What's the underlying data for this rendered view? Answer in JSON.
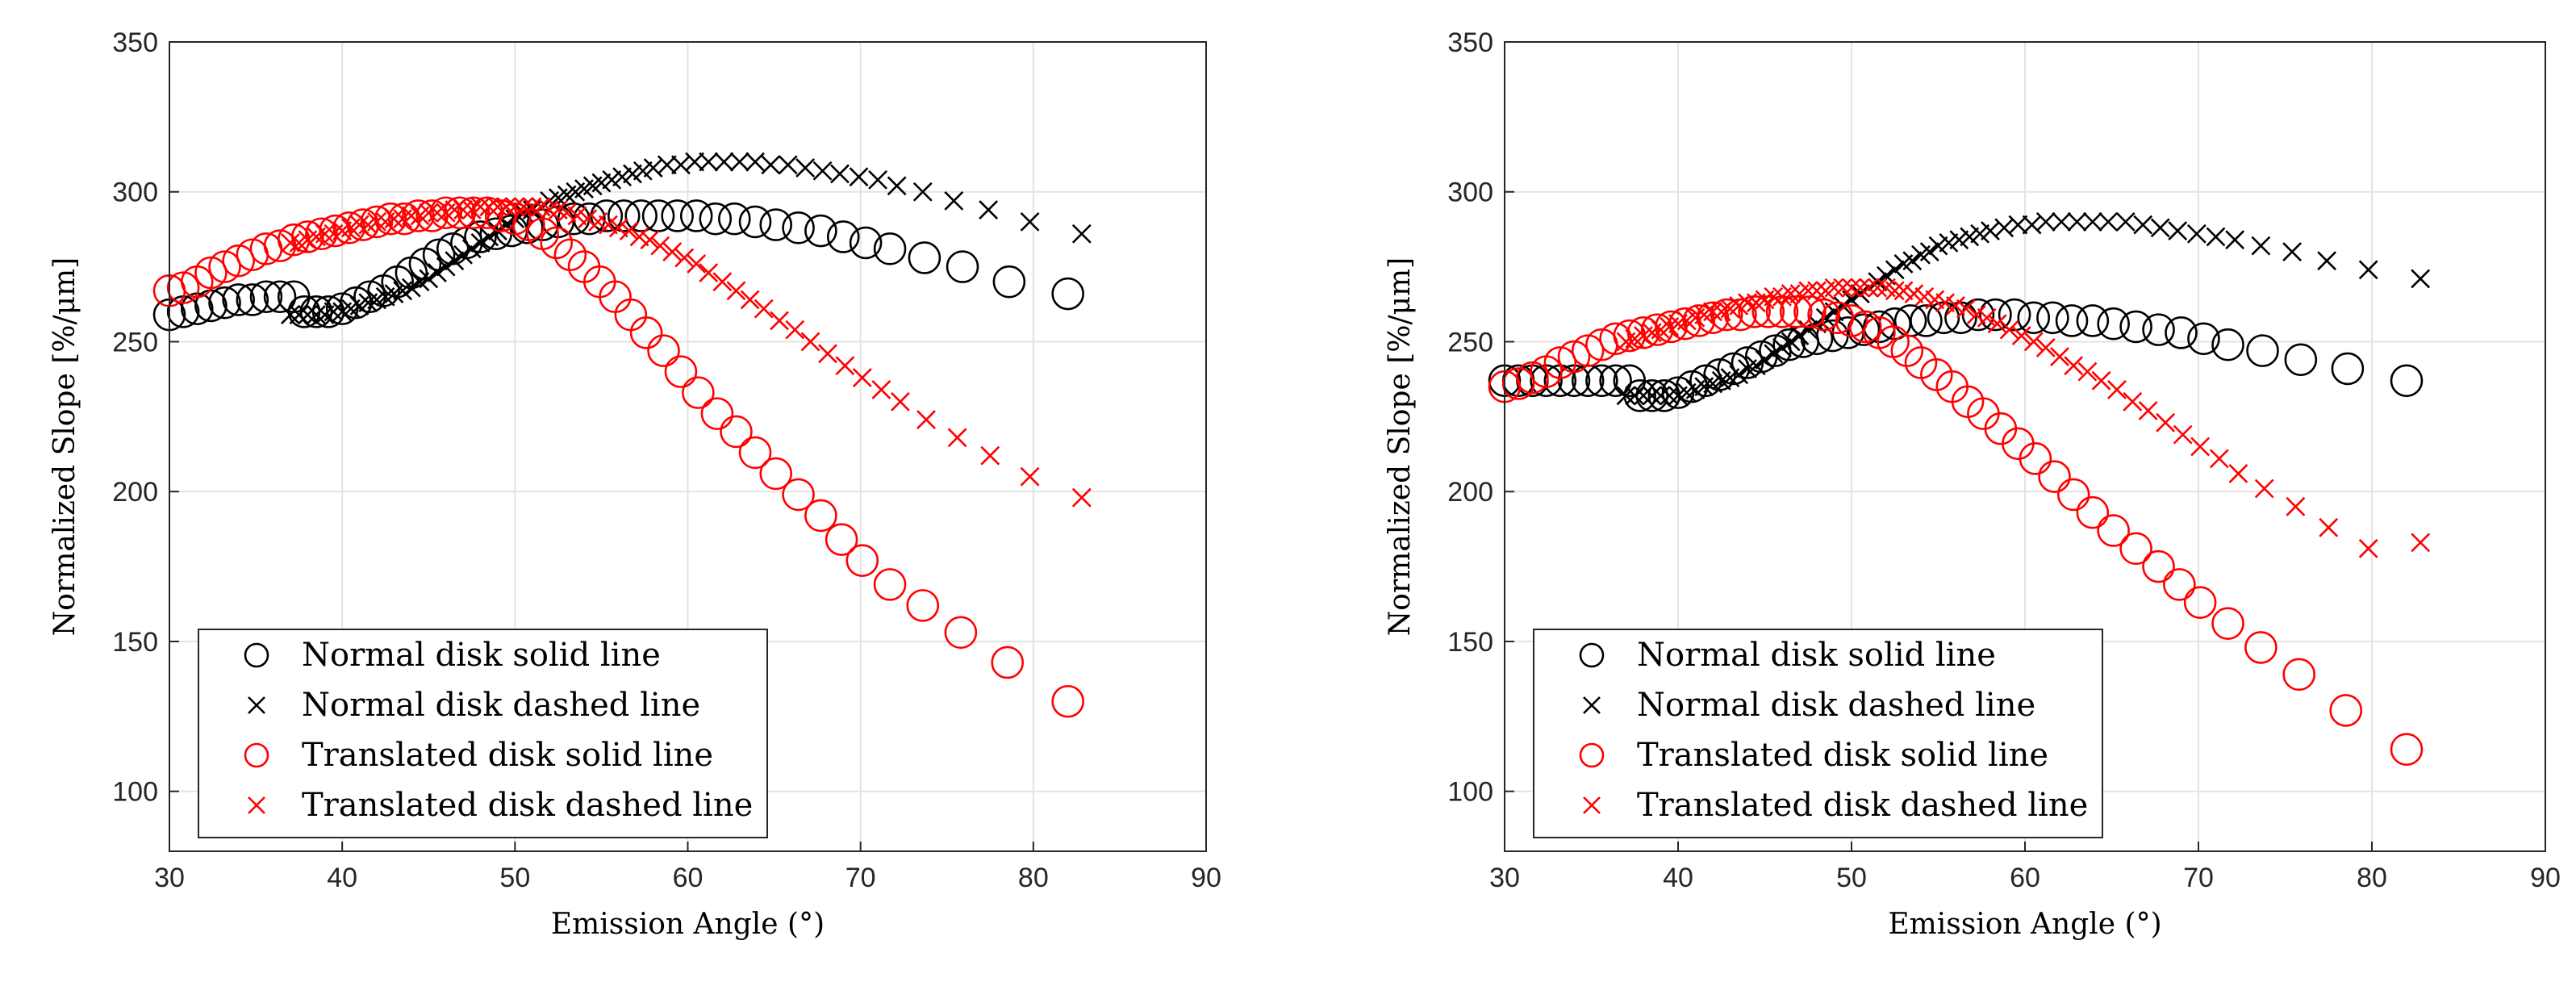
{
  "chart_data": [
    {
      "type": "scatter",
      "title": "",
      "xlabel": "Emission Angle (°)",
      "ylabel": "Normalized Slope [%/μm]",
      "xlim": [
        30,
        90
      ],
      "ylim": [
        80,
        350
      ],
      "xticks": [
        "30",
        "40",
        "50",
        "60",
        "70",
        "80",
        "90"
      ],
      "yticks": [
        "100",
        "150",
        "200",
        "250",
        "300",
        "350"
      ],
      "grid": true,
      "legend_position": "lower-left",
      "series": [
        {
          "name": "Normal disk solid line",
          "color": "#000000",
          "marker": "circle",
          "x": [
            30.0,
            30.8,
            31.6,
            32.4,
            33.2,
            34.0,
            34.8,
            35.6,
            36.4,
            37.2,
            37.8,
            38.5,
            39.2,
            40.0,
            40.8,
            41.6,
            42.4,
            43.2,
            44.0,
            44.8,
            45.6,
            46.4,
            47.2,
            48.0,
            48.9,
            49.8,
            50.7,
            51.6,
            52.5,
            53.4,
            54.3,
            55.3,
            56.3,
            57.3,
            58.3,
            59.4,
            60.5,
            61.6,
            62.7,
            63.9,
            65.1,
            66.4,
            67.7,
            69.0,
            70.3,
            71.7,
            73.7,
            75.9,
            78.6,
            82.0
          ],
          "y": [
            259,
            260,
            261,
            262,
            263,
            264,
            264,
            265,
            265,
            265,
            260,
            260,
            260,
            261,
            263,
            265,
            267,
            270,
            273,
            276,
            279,
            281,
            283,
            285,
            286,
            287,
            288,
            289,
            290,
            291,
            291,
            292,
            292,
            292,
            292,
            292,
            292,
            291,
            291,
            290,
            289,
            288,
            287,
            285,
            283,
            281,
            278,
            275,
            270,
            266
          ]
        },
        {
          "name": "Normal disk dashed line",
          "color": "#000000",
          "marker": "x",
          "x": [
            37.0,
            37.5,
            38.0,
            38.5,
            39.0,
            39.5,
            40.0,
            40.5,
            41.0,
            41.5,
            42.0,
            42.5,
            43.0,
            43.5,
            44.0,
            44.5,
            45.0,
            45.5,
            46.0,
            46.5,
            47.0,
            47.5,
            48.0,
            48.5,
            49.0,
            49.5,
            50.0,
            50.5,
            51.0,
            51.5,
            52.0,
            52.5,
            53.0,
            53.5,
            54.0,
            54.5,
            55.0,
            55.6,
            56.2,
            56.8,
            57.4,
            58.0,
            58.8,
            59.6,
            60.4,
            61.2,
            62.1,
            63.0,
            63.9,
            64.8,
            65.8,
            66.8,
            67.8,
            68.8,
            69.9,
            71.0,
            72.1,
            73.6,
            75.4,
            77.4,
            79.8,
            82.8
          ],
          "y": [
            259,
            259,
            259,
            259,
            259,
            260,
            260,
            261,
            262,
            263,
            264,
            265,
            266,
            267,
            268,
            270,
            271,
            273,
            275,
            277,
            279,
            281,
            283,
            285,
            287,
            289,
            291,
            293,
            294,
            295,
            297,
            298,
            299,
            300,
            301,
            302,
            303,
            304,
            305,
            306,
            307,
            308,
            309,
            309,
            310,
            310,
            310,
            310,
            310,
            309,
            309,
            308,
            307,
            306,
            305,
            304,
            302,
            300,
            297,
            294,
            290,
            286
          ]
        },
        {
          "name": "Translated disk solid line",
          "color": "#ff0000",
          "marker": "circle",
          "x": [
            30.0,
            30.8,
            31.6,
            32.4,
            33.2,
            34.0,
            34.8,
            35.6,
            36.4,
            37.2,
            38.0,
            38.8,
            39.6,
            40.4,
            41.2,
            42.0,
            42.8,
            43.6,
            44.4,
            45.2,
            46.0,
            46.8,
            47.6,
            48.4,
            49.2,
            50.0,
            50.8,
            51.6,
            52.4,
            53.2,
            54.0,
            54.9,
            55.8,
            56.7,
            57.6,
            58.6,
            59.6,
            60.6,
            61.7,
            62.8,
            63.9,
            65.1,
            66.4,
            67.7,
            68.9,
            70.1,
            71.7,
            73.6,
            75.8,
            78.5,
            82.0
          ],
          "y": [
            267,
            268,
            270,
            273,
            275,
            277,
            279,
            281,
            282,
            284,
            285,
            286,
            287,
            288,
            289,
            290,
            291,
            291,
            292,
            292,
            293,
            293,
            293,
            293,
            292,
            291,
            289,
            286,
            283,
            279,
            275,
            270,
            265,
            259,
            253,
            247,
            240,
            233,
            226,
            220,
            213,
            206,
            199,
            192,
            184,
            177,
            169,
            162,
            153,
            143,
            130
          ]
        },
        {
          "name": "Translated disk dashed line",
          "color": "#ff0000",
          "marker": "x",
          "x": [
            37.0,
            37.5,
            38.0,
            38.5,
            39.0,
            39.5,
            40.0,
            40.5,
            41.0,
            41.5,
            42.0,
            42.5,
            43.0,
            43.5,
            44.0,
            44.5,
            45.0,
            45.5,
            46.0,
            46.5,
            47.0,
            47.5,
            48.0,
            48.5,
            49.0,
            49.5,
            50.0,
            50.5,
            51.0,
            51.5,
            52.0,
            52.5,
            53.0,
            53.6,
            54.2,
            54.8,
            55.4,
            56.0,
            56.6,
            57.2,
            57.8,
            58.4,
            59.1,
            59.8,
            60.5,
            61.2,
            62.0,
            62.8,
            63.6,
            64.4,
            65.3,
            66.2,
            67.1,
            68.1,
            69.1,
            70.1,
            71.2,
            72.3,
            73.8,
            75.6,
            77.5,
            79.8,
            82.8
          ],
          "y": [
            283,
            283,
            284,
            285,
            286,
            286,
            287,
            288,
            289,
            289,
            290,
            290,
            291,
            291,
            292,
            292,
            293,
            293,
            293,
            294,
            294,
            294,
            295,
            295,
            295,
            295,
            295,
            295,
            295,
            295,
            294,
            294,
            293,
            292,
            291,
            290,
            289,
            288,
            287,
            285,
            284,
            282,
            280,
            278,
            276,
            273,
            270,
            267,
            264,
            261,
            257,
            254,
            250,
            246,
            242,
            238,
            234,
            230,
            224,
            218,
            212,
            205,
            198
          ]
        }
      ]
    },
    {
      "type": "scatter",
      "title": "",
      "xlabel": "Emission Angle (°)",
      "ylabel": "Normalized Slope [%/μm]",
      "xlim": [
        30,
        90
      ],
      "ylim": [
        80,
        350
      ],
      "xticks": [
        "30",
        "40",
        "50",
        "60",
        "70",
        "80",
        "90"
      ],
      "yticks": [
        "100",
        "150",
        "200",
        "250",
        "300",
        "350"
      ],
      "grid": true,
      "legend_position": "lower-left",
      "series": [
        {
          "name": "Normal disk solid line",
          "color": "#000000",
          "marker": "circle",
          "x": [
            30.0,
            30.8,
            31.6,
            32.4,
            33.2,
            34.0,
            34.8,
            35.6,
            36.4,
            37.2,
            37.8,
            38.5,
            39.2,
            40.0,
            40.8,
            41.6,
            42.4,
            43.2,
            44.0,
            44.8,
            45.6,
            46.4,
            47.2,
            48.0,
            48.9,
            49.8,
            50.7,
            51.6,
            52.5,
            53.4,
            54.3,
            55.3,
            56.3,
            57.3,
            58.3,
            59.4,
            60.5,
            61.6,
            62.7,
            63.9,
            65.1,
            66.4,
            67.7,
            69.0,
            70.3,
            71.7,
            73.7,
            75.9,
            78.6,
            82.0
          ],
          "y": [
            237,
            237,
            237,
            237,
            237,
            237,
            237,
            237,
            237,
            237,
            232,
            232,
            232,
            233,
            235,
            237,
            239,
            241,
            243,
            245,
            247,
            249,
            250,
            251,
            252,
            253,
            254,
            255,
            256,
            257,
            257,
            258,
            258,
            259,
            259,
            259,
            258,
            258,
            257,
            257,
            256,
            255,
            254,
            253,
            251,
            249,
            247,
            244,
            241,
            237
          ]
        },
        {
          "name": "Normal disk dashed line",
          "color": "#000000",
          "marker": "x",
          "x": [
            37.0,
            37.5,
            38.0,
            38.5,
            39.0,
            39.5,
            40.0,
            40.5,
            41.0,
            41.5,
            42.0,
            42.5,
            43.0,
            43.5,
            44.0,
            44.5,
            45.0,
            45.5,
            46.0,
            46.5,
            47.0,
            47.5,
            48.0,
            48.5,
            49.0,
            49.5,
            50.0,
            50.5,
            51.0,
            51.5,
            52.0,
            52.5,
            53.0,
            53.5,
            54.0,
            54.5,
            55.0,
            55.6,
            56.2,
            56.8,
            57.4,
            58.0,
            58.8,
            59.6,
            60.4,
            61.2,
            62.1,
            63.0,
            63.9,
            64.8,
            65.8,
            66.8,
            67.8,
            68.8,
            69.9,
            71.0,
            72.1,
            73.6,
            75.4,
            77.4,
            79.8,
            82.8
          ],
          "y": [
            232,
            232,
            232,
            232,
            232,
            232,
            232,
            233,
            234,
            235,
            236,
            237,
            238,
            239,
            241,
            242,
            244,
            246,
            248,
            250,
            252,
            254,
            256,
            258,
            260,
            262,
            264,
            266,
            268,
            270,
            272,
            274,
            276,
            277,
            279,
            280,
            282,
            283,
            284,
            285,
            286,
            287,
            288,
            289,
            289,
            290,
            290,
            290,
            290,
            290,
            290,
            289,
            288,
            287,
            286,
            285,
            284,
            282,
            280,
            277,
            274,
            271
          ]
        },
        {
          "name": "Translated disk solid line",
          "color": "#ff0000",
          "marker": "circle",
          "x": [
            30.0,
            30.8,
            31.6,
            32.4,
            33.2,
            34.0,
            34.8,
            35.6,
            36.4,
            37.2,
            38.0,
            38.8,
            39.6,
            40.4,
            41.2,
            42.0,
            42.8,
            43.6,
            44.4,
            45.2,
            46.0,
            46.8,
            47.6,
            48.4,
            49.2,
            50.0,
            50.8,
            51.6,
            52.4,
            53.2,
            54.0,
            54.9,
            55.8,
            56.7,
            57.6,
            58.6,
            59.6,
            60.6,
            61.7,
            62.8,
            63.9,
            65.1,
            66.4,
            67.7,
            68.9,
            70.1,
            71.7,
            73.6,
            75.8,
            78.5,
            82.0
          ],
          "y": [
            235,
            236,
            238,
            240,
            243,
            245,
            247,
            249,
            251,
            252,
            253,
            254,
            255,
            256,
            257,
            258,
            259,
            259,
            260,
            260,
            260,
            260,
            260,
            259,
            258,
            257,
            255,
            253,
            250,
            247,
            243,
            239,
            235,
            230,
            226,
            221,
            216,
            211,
            205,
            199,
            193,
            187,
            181,
            175,
            169,
            163,
            156,
            148,
            139,
            127,
            114
          ]
        },
        {
          "name": "Translated disk dashed line",
          "color": "#ff0000",
          "marker": "x",
          "x": [
            37.0,
            37.5,
            38.0,
            38.5,
            39.0,
            39.5,
            40.0,
            40.5,
            41.0,
            41.5,
            42.0,
            42.5,
            43.0,
            43.5,
            44.0,
            44.5,
            45.0,
            45.5,
            46.0,
            46.5,
            47.0,
            47.5,
            48.0,
            48.5,
            49.0,
            49.5,
            50.0,
            50.5,
            51.0,
            51.5,
            52.0,
            52.5,
            53.0,
            53.6,
            54.2,
            54.8,
            55.4,
            56.0,
            56.6,
            57.2,
            57.8,
            58.4,
            59.1,
            59.8,
            60.5,
            61.2,
            62.0,
            62.8,
            63.6,
            64.4,
            65.3,
            66.2,
            67.1,
            68.1,
            69.1,
            70.1,
            71.2,
            72.3,
            73.8,
            75.6,
            77.5,
            79.8,
            82.8
          ],
          "y": [
            250,
            251,
            252,
            253,
            254,
            255,
            256,
            257,
            258,
            259,
            260,
            260,
            261,
            262,
            263,
            263,
            264,
            265,
            265,
            266,
            266,
            267,
            267,
            267,
            268,
            268,
            268,
            268,
            268,
            268,
            268,
            267,
            267,
            266,
            265,
            264,
            263,
            262,
            261,
            259,
            258,
            256,
            254,
            252,
            250,
            248,
            245,
            242,
            240,
            237,
            234,
            230,
            227,
            223,
            219,
            215,
            211,
            206,
            201,
            195,
            188,
            181,
            183
          ]
        }
      ]
    }
  ]
}
